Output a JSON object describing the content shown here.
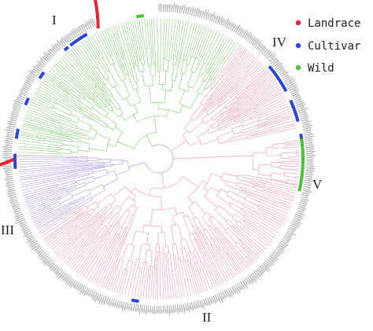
{
  "figure": {
    "type": "circular phylogenetic tree",
    "clade_labels": [
      {
        "id": "I",
        "text": "I"
      },
      {
        "id": "II",
        "text": "II"
      },
      {
        "id": "III",
        "text": "III"
      },
      {
        "id": "IV",
        "text": "IV"
      },
      {
        "id": "V",
        "text": "V"
      }
    ],
    "legend": {
      "placement": "top-right",
      "items": [
        {
          "label": "Landrace",
          "color": "#e8222e"
        },
        {
          "label": "Cultivar",
          "color": "#2b45d6"
        },
        {
          "label": "Wild",
          "color": "#4cc43a"
        }
      ]
    },
    "branch_colors": {
      "I": "#8fd17f",
      "II": "#f0a4b5",
      "III": "#b7a3e6",
      "IV": "#f0a4b5",
      "V": "#f0a4b5"
    },
    "ring_colors": {
      "landrace": "#e8222e",
      "cultivar": "#2b45d6",
      "wild": "#4cc43a",
      "tip_labels": "#9a9a9a"
    }
  }
}
